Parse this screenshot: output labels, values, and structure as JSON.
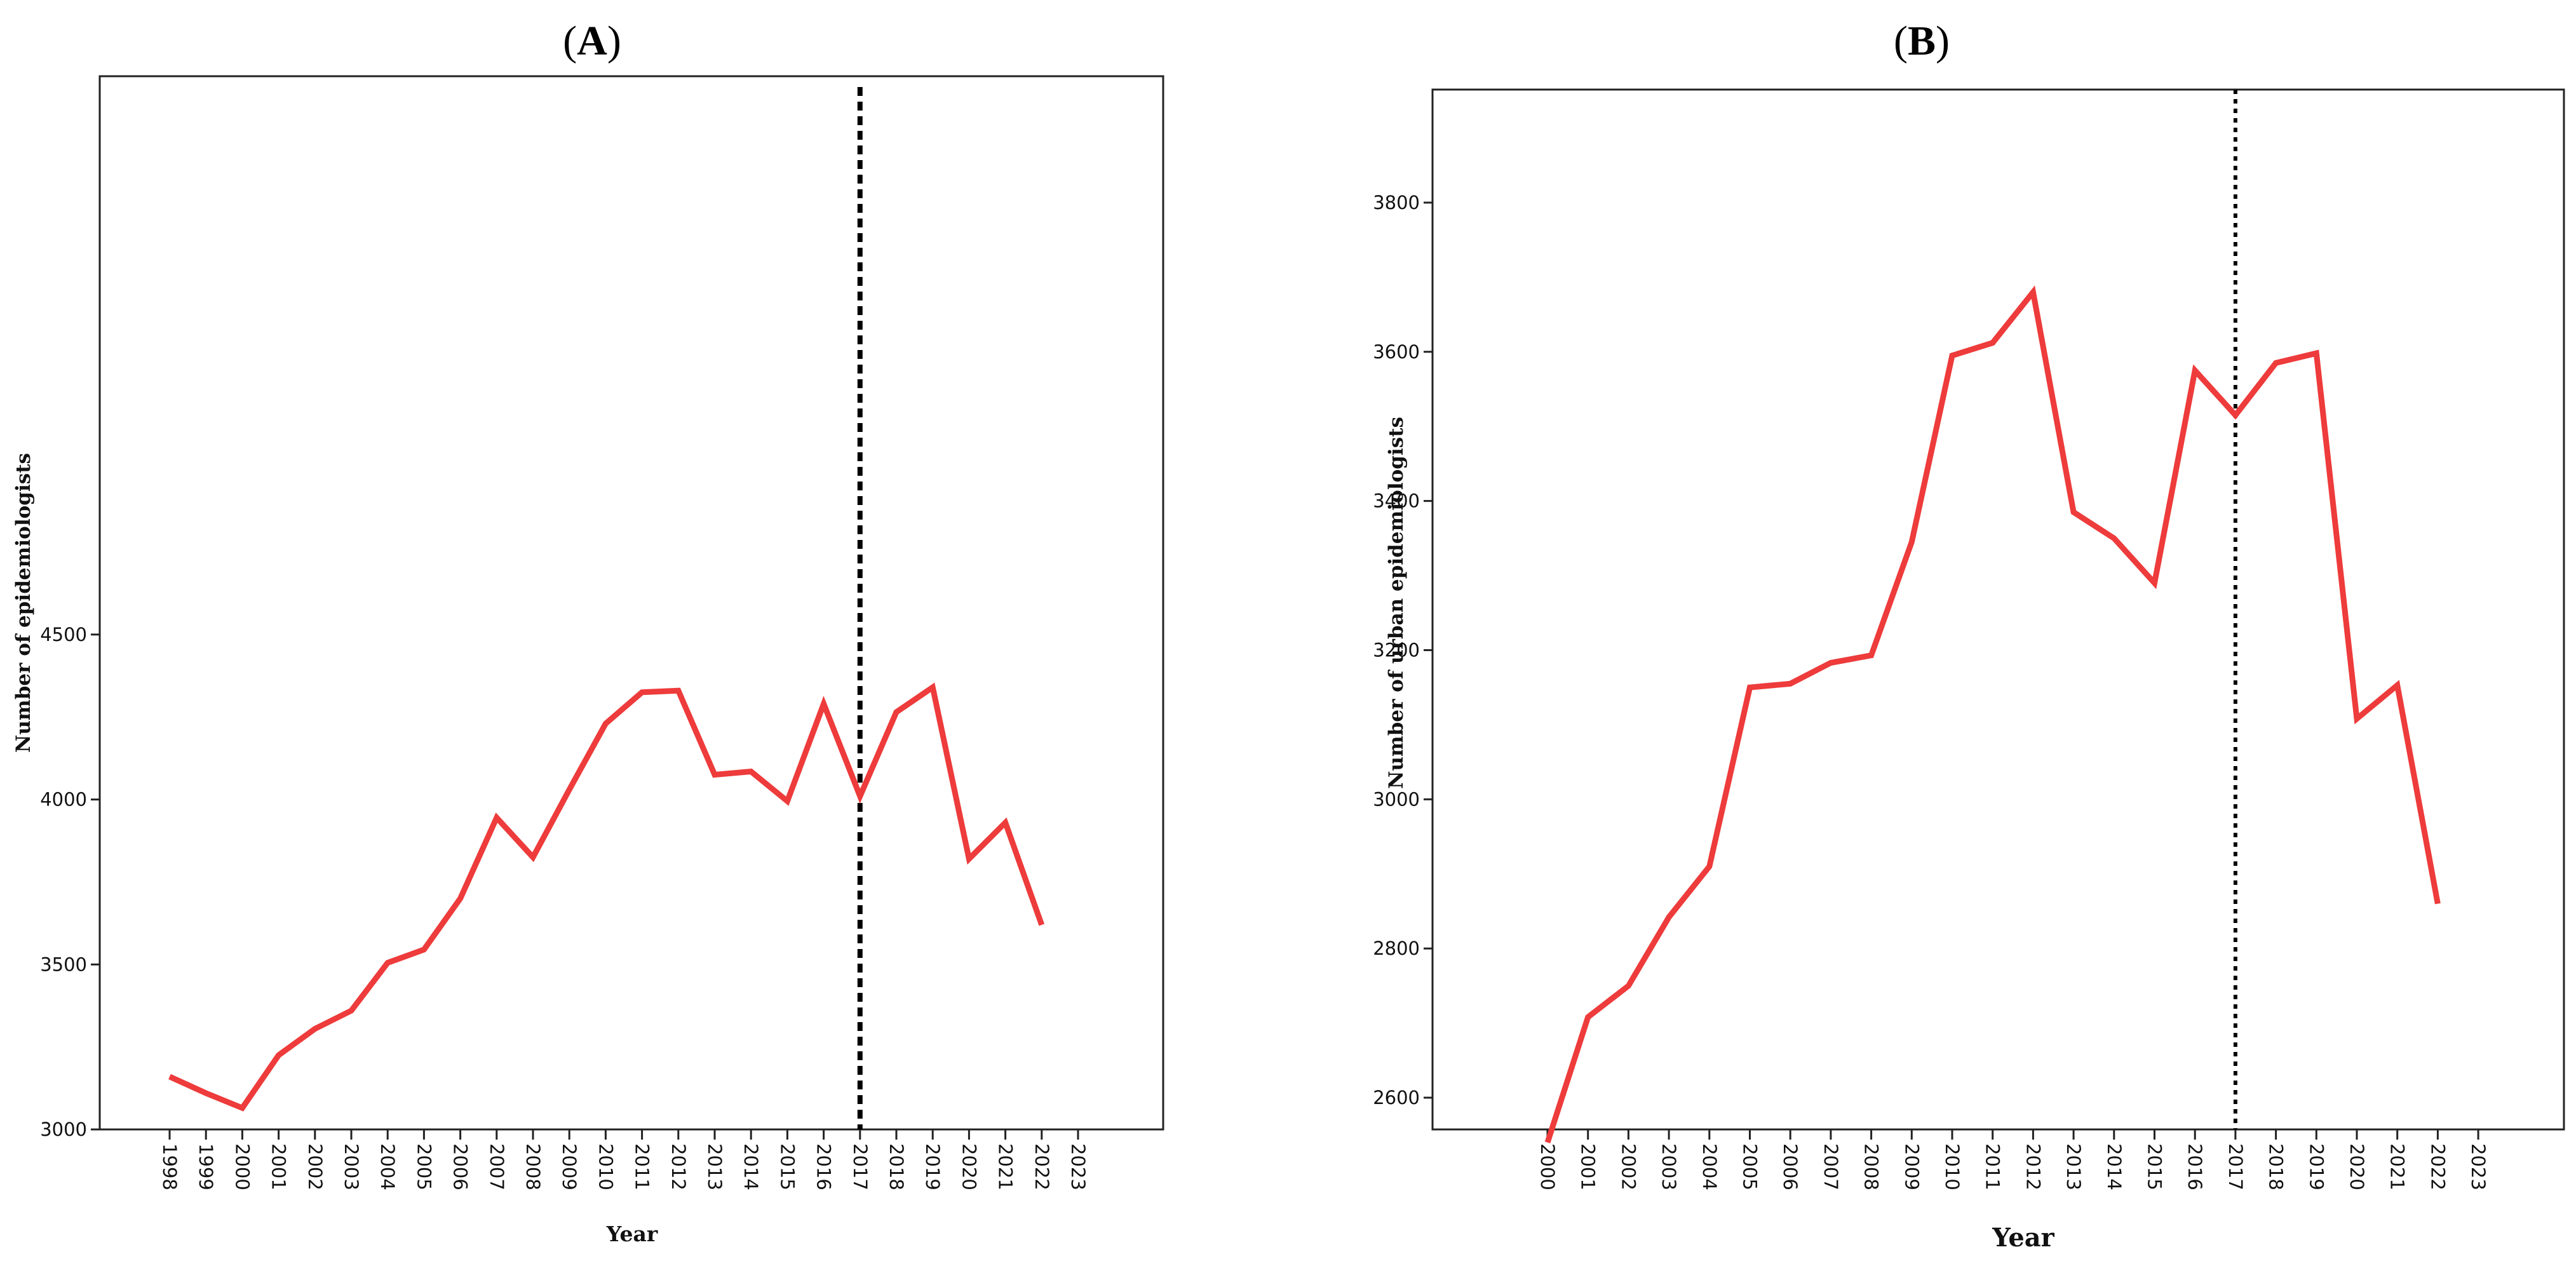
{
  "chart_data": [
    {
      "panel_label": "(A)",
      "type": "line",
      "xlabel": "Year",
      "ylabel": "Number of epidemiologists",
      "x": [
        "1998",
        "1999",
        "2000",
        "2001",
        "2002",
        "2003",
        "2004",
        "2005",
        "2006",
        "2007",
        "2008",
        "2009",
        "2010",
        "2011",
        "2012",
        "2013",
        "2014",
        "2015",
        "2016",
        "2017",
        "2018",
        "2019",
        "2020",
        "2021",
        "2022",
        "2023"
      ],
      "values": [
        3160,
        3110,
        3065,
        3225,
        3305,
        3360,
        3505,
        3545,
        3700,
        3945,
        3825,
        4030,
        4230,
        4325,
        4330,
        4075,
        4085,
        3995,
        4290,
        4010,
        4265,
        4340,
        3820,
        3930,
        3620,
        null
      ],
      "ylim": [
        3000,
        4550
      ],
      "yticks": [
        "3000",
        "3500",
        "4000",
        "4500"
      ],
      "reference_line": {
        "x": "2017",
        "style": "dashed"
      },
      "color": "#ee3b3b"
    },
    {
      "panel_label": "(B)",
      "type": "line",
      "xlabel": "Year",
      "ylabel": "Number of urban epidemiologists",
      "x": [
        "2000",
        "2001",
        "2002",
        "2003",
        "2004",
        "2005",
        "2006",
        "2007",
        "2008",
        "2009",
        "2010",
        "2011",
        "2012",
        "2013",
        "2014",
        "2015",
        "2016",
        "2017",
        "2018",
        "2019",
        "2020",
        "2021",
        "2022",
        "2023"
      ],
      "values": [
        2540,
        2708,
        2750,
        2842,
        2910,
        3150,
        3155,
        3183,
        3193,
        3345,
        3595,
        3612,
        3680,
        3385,
        3350,
        3290,
        3575,
        3515,
        3585,
        3598,
        3108,
        3153,
        2860,
        null
      ],
      "ylim": [
        2500,
        3890
      ],
      "yticks": [
        "2600",
        "2800",
        "3000",
        "3200",
        "3400",
        "3600",
        "3800"
      ],
      "reference_line": {
        "x": "2017",
        "style": "dotted"
      },
      "color": "#ee3b3b"
    }
  ]
}
